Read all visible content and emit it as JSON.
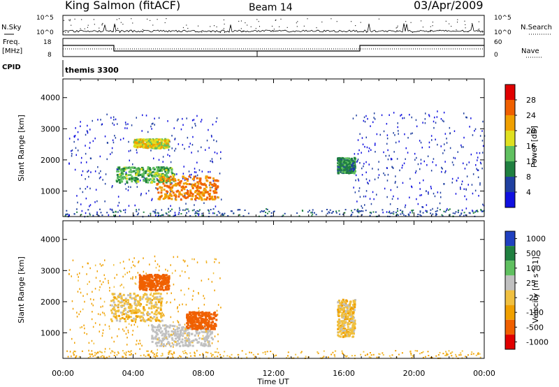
{
  "header": {
    "station": "King Salmon (fitACF)",
    "beam": "Beam 14",
    "date": "03/Apr/2009"
  },
  "noise_panel": {
    "left_label": "N.Sky",
    "right_label": "N.Search",
    "tick_top": "10^5",
    "tick_bottom": "10^0"
  },
  "freq_panel": {
    "left_label_1": "Freq.",
    "left_label_2": "[MHz]",
    "right_label": "Nave",
    "tick_left_top": "18",
    "tick_left_bottom": "8",
    "tick_right_top": "60",
    "tick_right_bottom": "0"
  },
  "cpid_panel": {
    "label": "CPID",
    "value": "themis 3300"
  },
  "range_axis": {
    "label": "Slant Range [km]",
    "ticks": [
      "1000",
      "2000",
      "3000",
      "4000"
    ]
  },
  "time_axis": {
    "label": "Time UT",
    "ticks": [
      "00:00",
      "04:00",
      "08:00",
      "12:00",
      "16:00",
      "20:00",
      "00:00"
    ]
  },
  "colors": {
    "power": [
      "#1010e0",
      "#2040a0",
      "#208040",
      "#60c060",
      "#e0e020",
      "#f0a000",
      "#f06000",
      "#e00000"
    ],
    "velocity": [
      "#2040c0",
      "#208040",
      "#60c060",
      "#c0c0c0",
      "#f0c040",
      "#f0a000",
      "#f06000",
      "#e00000"
    ]
  },
  "chart_data": [
    {
      "type": "heatmap",
      "title": "Power",
      "colorbar_label": "Power [dB]",
      "colorbar_ticks": [
        "4",
        "8",
        "12",
        "16",
        "20",
        "24",
        "28"
      ],
      "x_range_hours": [
        0,
        24
      ],
      "y_range_km": [
        180,
        4600
      ],
      "regions": [
        {
          "t0": 0.3,
          "t1": 9.0,
          "r0": 200,
          "r1": 3500,
          "value_db": 4
        },
        {
          "t0": 3.0,
          "t1": 6.3,
          "r0": 1300,
          "r1": 1800,
          "value_db": 13
        },
        {
          "t0": 4.0,
          "t1": 6.0,
          "r0": 2400,
          "r1": 2700,
          "value_db": 18
        },
        {
          "t0": 5.3,
          "t1": 8.8,
          "r0": 750,
          "r1": 1500,
          "value_db": 24
        },
        {
          "t0": 15.6,
          "t1": 16.6,
          "r0": 1600,
          "r1": 2100,
          "value_db": 10
        },
        {
          "t0": 16.5,
          "t1": 24.0,
          "r0": 200,
          "r1": 3600,
          "value_db": 4
        }
      ]
    },
    {
      "type": "heatmap",
      "title": "Velocity",
      "colorbar_label": "Velocity [m s^-1]",
      "colorbar_ticks": [
        "1000",
        "500",
        "100",
        "25",
        "-25",
        "-100",
        "-500",
        "-1000"
      ],
      "x_range_hours": [
        0,
        24
      ],
      "y_range_km": [
        180,
        4600
      ],
      "regions": [
        {
          "t0": 0.3,
          "t1": 9.0,
          "r0": 200,
          "r1": 3500,
          "value_ms": -50
        },
        {
          "t0": 2.7,
          "t1": 5.6,
          "r0": 1400,
          "r1": 2300,
          "value_ms": 0
        },
        {
          "t0": 4.3,
          "t1": 6.0,
          "r0": 2400,
          "r1": 2900,
          "value_ms": -300
        },
        {
          "t0": 5.0,
          "t1": 8.5,
          "r0": 600,
          "r1": 1300,
          "value_ms": 60
        },
        {
          "t0": 7.0,
          "t1": 8.7,
          "r0": 1150,
          "r1": 1700,
          "value_ms": -300
        },
        {
          "t0": 15.6,
          "t1": 16.6,
          "r0": 900,
          "r1": 2100,
          "value_ms": 0
        }
      ]
    }
  ]
}
